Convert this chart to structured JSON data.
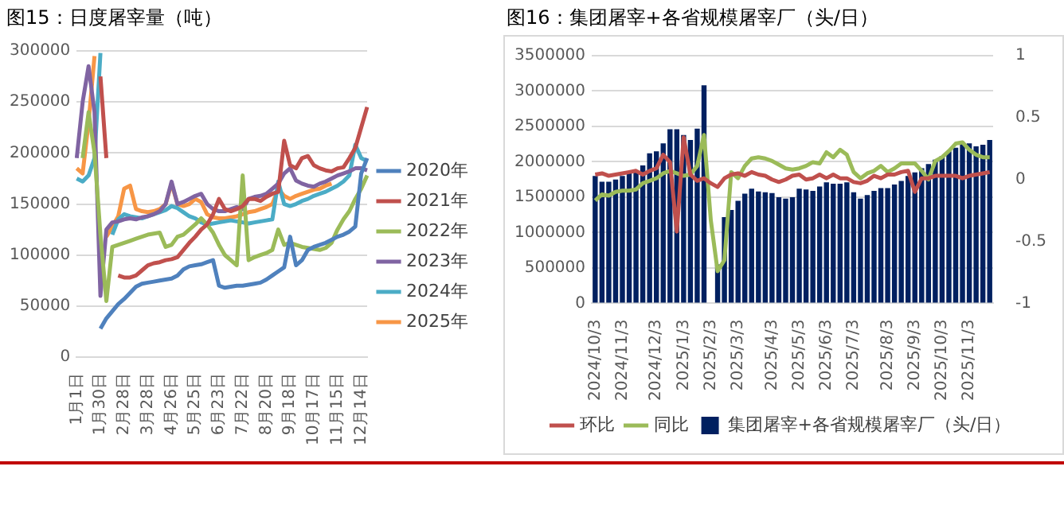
{
  "chart_data": [
    {
      "type": "line",
      "title": "图15：日度屠宰量（吨）",
      "categories": [
        "1月1日",
        null,
        null,
        null,
        "1月30日",
        null,
        null,
        null,
        "2月28日",
        null,
        null,
        null,
        "3月28日",
        null,
        null,
        null,
        "4月26日",
        null,
        null,
        null,
        "5月25日",
        null,
        null,
        null,
        "6月23日",
        null,
        null,
        null,
        "7月22日",
        null,
        null,
        null,
        "8月20日",
        null,
        null,
        null,
        "9月18日",
        null,
        null,
        null,
        "10月17日",
        null,
        null,
        null,
        "11月15日",
        null,
        null,
        null,
        "12月14日",
        null
      ],
      "series": [
        {
          "name": "2020年",
          "color": "#4f81bd",
          "values": [
            null,
            null,
            null,
            null,
            28000,
            38000,
            45000,
            52000,
            57000,
            63000,
            69000,
            72000,
            73000,
            74000,
            75000,
            76000,
            77000,
            80000,
            86000,
            89000,
            90000,
            91000,
            93000,
            95000,
            70000,
            68000,
            69000,
            70000,
            70000,
            71000,
            72000,
            73000,
            76000,
            80000,
            84000,
            88000,
            118000,
            90000,
            95000,
            105000,
            108000,
            110000,
            112000,
            115000,
            118000,
            120000,
            123000,
            128000,
            180000,
            195000
          ]
        },
        {
          "name": "2021年",
          "color": "#c0504d",
          "values": [
            null,
            null,
            null,
            null,
            275000,
            195000,
            null,
            80000,
            78000,
            78000,
            80000,
            85000,
            90000,
            92000,
            93000,
            95000,
            96000,
            98000,
            105000,
            112000,
            118000,
            125000,
            130000,
            140000,
            155000,
            145000,
            143000,
            145000,
            148000,
            155000,
            155000,
            153000,
            157000,
            160000,
            162000,
            212000,
            188000,
            185000,
            195000,
            197000,
            188000,
            185000,
            183000,
            182000,
            185000,
            186000,
            195000,
            205000,
            225000,
            245000
          ]
        },
        {
          "name": "2022年",
          "color": "#9bbb59",
          "values": [
            null,
            195000,
            240000,
            200000,
            120000,
            55000,
            108000,
            110000,
            112000,
            114000,
            116000,
            118000,
            120000,
            121000,
            122000,
            108000,
            110000,
            118000,
            120000,
            125000,
            130000,
            136000,
            130000,
            122000,
            110000,
            100000,
            95000,
            90000,
            178000,
            95000,
            98000,
            100000,
            102000,
            105000,
            125000,
            110000,
            112000,
            110000,
            108000,
            107000,
            106000,
            105000,
            107000,
            112000,
            125000,
            135000,
            143000,
            155000,
            165000,
            178000
          ]
        },
        {
          "name": "2023年",
          "color": "#8064a2",
          "values": [
            195000,
            250000,
            285000,
            240000,
            60000,
            125000,
            132000,
            133000,
            135000,
            136000,
            135000,
            137000,
            138000,
            140000,
            143000,
            150000,
            172000,
            150000,
            152000,
            155000,
            158000,
            160000,
            150000,
            145000,
            143000,
            143000,
            145000,
            147000,
            145000,
            155000,
            157000,
            158000,
            160000,
            165000,
            170000,
            180000,
            185000,
            173000,
            170000,
            168000,
            167000,
            170000,
            172000,
            175000,
            178000,
            180000,
            182000,
            185000,
            185000,
            183000
          ]
        },
        {
          "name": "2024年",
          "color": "#4bacc6",
          "values": [
            175000,
            172000,
            178000,
            195000,
            298000,
            null,
            120000,
            135000,
            140000,
            138000,
            137000,
            136000,
            138000,
            140000,
            142000,
            144000,
            148000,
            146000,
            142000,
            138000,
            136000,
            132000,
            130000,
            131000,
            132000,
            133000,
            134000,
            133000,
            132000,
            131000,
            132000,
            133000,
            134000,
            135000,
            172000,
            150000,
            148000,
            150000,
            153000,
            155000,
            158000,
            160000,
            162000,
            165000,
            168000,
            172000,
            178000,
            208000,
            195000,
            192000
          ]
        },
        {
          "name": "2025年",
          "color": "#f79646",
          "values": [
            185000,
            180000,
            230000,
            295000,
            null,
            118000,
            128000,
            138000,
            165000,
            168000,
            145000,
            143000,
            142000,
            143000,
            145000,
            150000,
            170000,
            150000,
            148000,
            150000,
            155000,
            152000,
            140000,
            137000,
            136000,
            136000,
            137000,
            138000,
            140000,
            142000,
            143000,
            145000,
            147000,
            150000,
            165000,
            158000,
            155000,
            158000,
            160000,
            162000,
            164000,
            165000,
            168000,
            170000,
            null,
            null,
            null,
            null,
            null,
            null
          ]
        }
      ],
      "ylim": [
        0,
        300000
      ],
      "yticks": [
        0,
        50000,
        100000,
        150000,
        200000,
        250000,
        300000
      ],
      "grid": "y",
      "legend": "right"
    },
    {
      "type": "bar",
      "title": "图16：集团屠宰+各省规模屠宰厂（头/日）",
      "categories": [
        "2024/10/3",
        null,
        null,
        null,
        "2024/11/3",
        null,
        null,
        null,
        null,
        "2024/12/3",
        null,
        null,
        null,
        "2025/1/3",
        null,
        null,
        null,
        "2025/2/3",
        null,
        null,
        null,
        "2025/3/3",
        null,
        null,
        null,
        null,
        "2025/4/3",
        null,
        null,
        null,
        "2025/5/3",
        null,
        null,
        null,
        "2025/6/3",
        null,
        null,
        null,
        "2025/7/3",
        null,
        null,
        null,
        null,
        "2025/8/3",
        null,
        null,
        null,
        "2025/9/3",
        null,
        null,
        null,
        "2025/10/3",
        null,
        null,
        null,
        "2025/11/3",
        null,
        null,
        null
      ],
      "series": [
        {
          "name": "集团屠宰+各省规模屠宰厂（头/日）",
          "color": "#002060",
          "values": [
            1800000,
            1720000,
            1720000,
            1750000,
            1800000,
            1850000,
            1870000,
            1950000,
            2120000,
            2150000,
            2260000,
            2460000,
            2460000,
            2380000,
            2310000,
            2470000,
            3080000,
            null,
            550000,
            1220000,
            1320000,
            1450000,
            1550000,
            1620000,
            1580000,
            1570000,
            1560000,
            1500000,
            1480000,
            1500000,
            1620000,
            1610000,
            1590000,
            1650000,
            1710000,
            1690000,
            1690000,
            1710000,
            1570000,
            1480000,
            1530000,
            1590000,
            1630000,
            1630000,
            1680000,
            1730000,
            1800000,
            1850000,
            1910000,
            1970000,
            2030000,
            2080000,
            2150000,
            2200000,
            2260000,
            2260000,
            2220000,
            2240000,
            2310000
          ]
        },
        {
          "name": "环比",
          "type": "line",
          "axis": "y2",
          "color": "#c0504d",
          "values": [
            0.04,
            0.05,
            0.03,
            0.04,
            0.05,
            0.06,
            0.07,
            0.04,
            0.07,
            0.09,
            0.2,
            0.14,
            -0.42,
            0.34,
            0.04,
            -0.01,
            0.01,
            -0.03,
            -0.06,
            0.01,
            0.04,
            0.05,
            0.03,
            0.06,
            0.04,
            0.03,
            0,
            -0.02,
            0,
            0.03,
            0.04,
            0,
            0.01,
            0.04,
            0.01,
            0.04,
            0.01,
            0.01,
            -0.02,
            -0.03,
            -0.01,
            0.03,
            0.01,
            0.04,
            0.04,
            0.06,
            0.07,
            -0.1,
            0.01,
            0.01,
            0.03,
            0.03,
            0.03,
            0.03,
            0.01,
            0.03,
            0.04,
            0.05,
            0.06
          ]
        },
        {
          "name": "同比",
          "type": "line",
          "axis": "y2",
          "color": "#9bbb59",
          "values": [
            -0.17,
            -0.12,
            -0.13,
            -0.1,
            -0.09,
            -0.09,
            -0.08,
            -0.03,
            -0.01,
            0.01,
            0.05,
            0.07,
            0.05,
            0.03,
            0.04,
            0.11,
            0.36,
            -0.33,
            -0.74,
            -0.65,
            0.06,
            0.01,
            0.11,
            0.17,
            0.18,
            0.17,
            0.15,
            0.12,
            0.09,
            0.08,
            0.09,
            0.11,
            0.14,
            0.13,
            0.22,
            0.18,
            0.24,
            0.2,
            0.06,
            0.01,
            0.05,
            0.07,
            0.11,
            0.06,
            0.09,
            0.13,
            0.13,
            0.13,
            0.07,
            0,
            0.15,
            0.18,
            0.23,
            0.29,
            0.3,
            0.24,
            0.2,
            0.18,
            0.18
          ]
        }
      ],
      "ylim": [
        0,
        3500000
      ],
      "yticks": [
        0,
        500000,
        1000000,
        1500000,
        2000000,
        2500000,
        3000000,
        3500000
      ],
      "y2lim": [
        -1,
        1
      ],
      "y2ticks": [
        -1,
        -0.5,
        0,
        0.5,
        1
      ],
      "grid": "y",
      "legend": "bottom"
    }
  ]
}
